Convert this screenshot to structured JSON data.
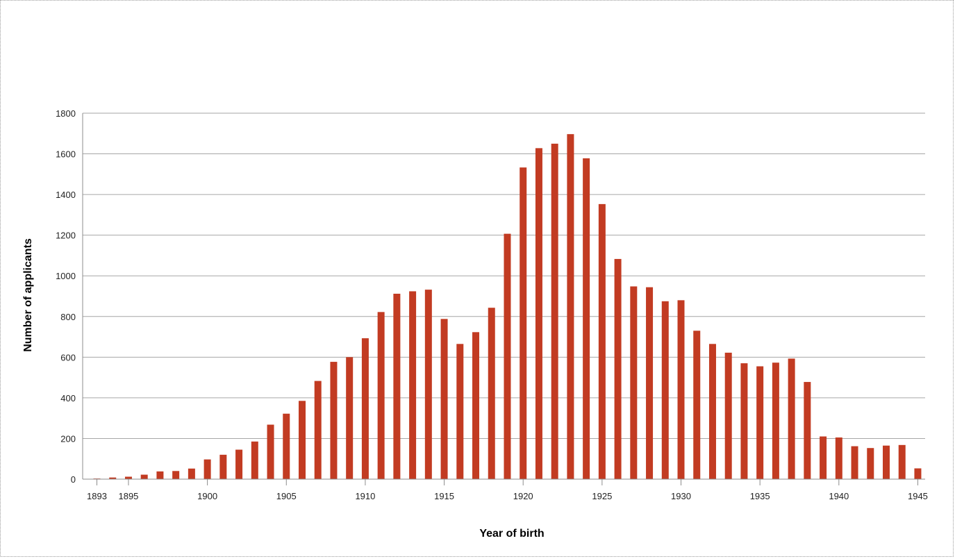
{
  "chart_data": {
    "type": "bar",
    "title": "",
    "xlabel": "Year of birth",
    "ylabel": "Number of applicants",
    "ylim": [
      0,
      1800
    ],
    "yticks": [
      0,
      200,
      400,
      600,
      800,
      1000,
      1200,
      1400,
      1600,
      1800
    ],
    "x_tick_labels": [
      "1893",
      "1895",
      "1900",
      "1905",
      "1910",
      "1915",
      "1920",
      "1925",
      "1930",
      "1935",
      "1940",
      "1945"
    ],
    "grid": "horizontal",
    "bar_color": "#C23B22",
    "categories": [
      "1893",
      "1894",
      "1895",
      "1896",
      "1897",
      "1898",
      "1899",
      "1900",
      "1901",
      "1902",
      "1903",
      "1904",
      "1905",
      "1906",
      "1907",
      "1908",
      "1909",
      "1910",
      "1911",
      "1912",
      "1913",
      "1914",
      "1915",
      "1916",
      "1917",
      "1918",
      "1919",
      "1920",
      "1921",
      "1922",
      "1923",
      "1924",
      "1925",
      "1926",
      "1927",
      "1928",
      "1929",
      "1930",
      "1931",
      "1932",
      "1933",
      "1934",
      "1935",
      "1936",
      "1937",
      "1938",
      "1939",
      "1940",
      "1941",
      "1942",
      "1943",
      "1944",
      "1945"
    ],
    "values": [
      3,
      8,
      12,
      22,
      38,
      40,
      52,
      97,
      120,
      145,
      185,
      268,
      322,
      385,
      483,
      577,
      600,
      693,
      822,
      912,
      924,
      932,
      788,
      665,
      723,
      843,
      1207,
      1533,
      1628,
      1650,
      1697,
      1578,
      1353,
      1083,
      948,
      944,
      875,
      880,
      730,
      665,
      622,
      570,
      555,
      573,
      593,
      478,
      210,
      205,
      162,
      153,
      165,
      168,
      53
    ]
  }
}
